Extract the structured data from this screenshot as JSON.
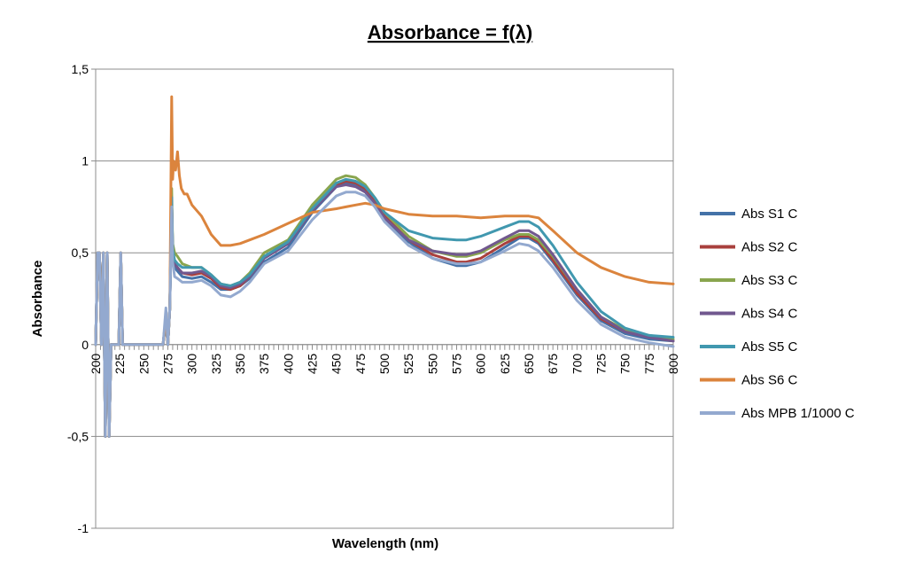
{
  "chart_data": {
    "type": "line",
    "title": "Absorbance = f(λ)",
    "xlabel": "Wavelength (nm)",
    "ylabel": "Absorbance",
    "xlim": [
      200,
      800
    ],
    "ylim": [
      -1,
      1.5
    ],
    "x_ticks": [
      200,
      225,
      250,
      275,
      300,
      325,
      350,
      375,
      400,
      425,
      450,
      475,
      500,
      525,
      550,
      575,
      600,
      625,
      650,
      675,
      700,
      725,
      750,
      775,
      800
    ],
    "y_ticks": [
      -1,
      -0.5,
      0,
      0.5,
      1,
      1.5
    ],
    "y_tick_labels": [
      "-1",
      "-0,5",
      "0",
      "0,5",
      "1",
      "1,5"
    ],
    "grid": "horizontal",
    "legend_position": "right",
    "series": [
      {
        "name": "Abs S1 C",
        "color": "#4472A8",
        "x": [
          200,
          202,
          204,
          206,
          208,
          210,
          212,
          214,
          216,
          218,
          222,
          224,
          226,
          228,
          230,
          240,
          250,
          260,
          270,
          273,
          275,
          277,
          279,
          280,
          282,
          285,
          290,
          300,
          310,
          320,
          330,
          340,
          350,
          360,
          375,
          400,
          425,
          450,
          460,
          470,
          480,
          490,
          500,
          525,
          550,
          575,
          585,
          600,
          625,
          640,
          650,
          660,
          675,
          700,
          725,
          750,
          775,
          800
        ],
        "y": [
          0,
          0.5,
          0.5,
          0,
          0.5,
          -0.5,
          0.5,
          -0.5,
          0,
          0,
          0,
          0,
          0.5,
          0,
          0,
          0,
          0,
          0,
          0,
          0.15,
          0,
          0.2,
          0.8,
          0.52,
          0.42,
          0.4,
          0.37,
          0.36,
          0.37,
          0.34,
          0.3,
          0.3,
          0.32,
          0.36,
          0.45,
          0.53,
          0.72,
          0.86,
          0.88,
          0.87,
          0.84,
          0.77,
          0.69,
          0.56,
          0.47,
          0.43,
          0.43,
          0.45,
          0.53,
          0.58,
          0.58,
          0.55,
          0.45,
          0.27,
          0.13,
          0.06,
          0.03,
          0.02
        ]
      },
      {
        "name": "Abs S2 C",
        "color": "#A9403D",
        "x": [
          200,
          202,
          204,
          206,
          208,
          210,
          212,
          214,
          216,
          218,
          222,
          224,
          226,
          228,
          230,
          240,
          250,
          260,
          270,
          273,
          275,
          277,
          279,
          280,
          282,
          285,
          290,
          300,
          310,
          320,
          330,
          340,
          350,
          360,
          375,
          400,
          425,
          450,
          460,
          470,
          480,
          490,
          500,
          525,
          550,
          575,
          585,
          600,
          625,
          640,
          650,
          660,
          675,
          700,
          725,
          750,
          775,
          800
        ],
        "y": [
          0,
          0.5,
          0.5,
          0,
          0.5,
          -0.5,
          0.5,
          -0.5,
          0,
          0,
          0,
          0,
          0.5,
          0,
          0,
          0,
          0,
          0,
          0,
          0.15,
          0,
          0.2,
          0.8,
          0.5,
          0.44,
          0.42,
          0.39,
          0.38,
          0.39,
          0.36,
          0.31,
          0.3,
          0.32,
          0.37,
          0.47,
          0.55,
          0.73,
          0.87,
          0.89,
          0.88,
          0.85,
          0.78,
          0.7,
          0.57,
          0.49,
          0.45,
          0.45,
          0.47,
          0.55,
          0.59,
          0.59,
          0.56,
          0.46,
          0.28,
          0.14,
          0.07,
          0.04,
          0.02
        ]
      },
      {
        "name": "Abs S3 C",
        "color": "#89A54E",
        "x": [
          200,
          202,
          204,
          206,
          208,
          210,
          212,
          214,
          216,
          218,
          222,
          224,
          226,
          228,
          230,
          240,
          250,
          260,
          270,
          273,
          275,
          277,
          279,
          280,
          282,
          285,
          290,
          300,
          310,
          320,
          330,
          340,
          350,
          360,
          375,
          400,
          425,
          450,
          460,
          470,
          480,
          490,
          500,
          525,
          550,
          575,
          585,
          600,
          625,
          640,
          650,
          660,
          675,
          700,
          725,
          750,
          775,
          800
        ],
        "y": [
          0,
          0.5,
          0.5,
          0,
          0.5,
          -0.5,
          0.5,
          -0.5,
          0,
          0,
          0,
          0,
          0.5,
          0,
          0,
          0,
          0,
          0,
          0,
          0.15,
          0,
          0.2,
          0.85,
          0.55,
          0.5,
          0.48,
          0.44,
          0.42,
          0.42,
          0.38,
          0.33,
          0.32,
          0.34,
          0.39,
          0.5,
          0.57,
          0.76,
          0.9,
          0.92,
          0.91,
          0.87,
          0.8,
          0.72,
          0.59,
          0.51,
          0.48,
          0.48,
          0.5,
          0.57,
          0.6,
          0.6,
          0.57,
          0.48,
          0.3,
          0.15,
          0.08,
          0.05,
          0.03
        ]
      },
      {
        "name": "Abs S4 C",
        "color": "#71588F",
        "x": [
          200,
          202,
          204,
          206,
          208,
          210,
          212,
          214,
          216,
          218,
          222,
          224,
          226,
          228,
          230,
          240,
          250,
          260,
          270,
          273,
          275,
          277,
          279,
          280,
          282,
          285,
          290,
          300,
          310,
          320,
          330,
          340,
          350,
          360,
          375,
          400,
          425,
          450,
          460,
          470,
          480,
          490,
          500,
          525,
          550,
          575,
          585,
          600,
          625,
          640,
          650,
          660,
          675,
          700,
          725,
          750,
          775,
          800
        ],
        "y": [
          0,
          0.5,
          0.5,
          0,
          0.5,
          -0.5,
          0.5,
          -0.5,
          0,
          0,
          0,
          0,
          0.5,
          0,
          0,
          0,
          0,
          0,
          0,
          0.15,
          0,
          0.2,
          0.8,
          0.5,
          0.44,
          0.42,
          0.39,
          0.39,
          0.4,
          0.37,
          0.32,
          0.31,
          0.33,
          0.37,
          0.47,
          0.55,
          0.73,
          0.86,
          0.87,
          0.86,
          0.83,
          0.77,
          0.69,
          0.57,
          0.51,
          0.49,
          0.49,
          0.51,
          0.58,
          0.62,
          0.62,
          0.59,
          0.49,
          0.3,
          0.15,
          0.07,
          0.04,
          0.02
        ]
      },
      {
        "name": "Abs S5 C",
        "color": "#4198AF",
        "x": [
          200,
          202,
          204,
          206,
          208,
          210,
          212,
          214,
          216,
          218,
          222,
          224,
          226,
          228,
          230,
          240,
          250,
          260,
          270,
          273,
          275,
          277,
          279,
          280,
          282,
          285,
          290,
          300,
          310,
          320,
          330,
          340,
          350,
          360,
          375,
          400,
          425,
          450,
          460,
          470,
          480,
          490,
          500,
          525,
          550,
          575,
          585,
          600,
          625,
          640,
          650,
          660,
          675,
          700,
          725,
          750,
          775,
          800
        ],
        "y": [
          0,
          0.5,
          0.5,
          0,
          0.5,
          -0.5,
          0.5,
          -0.5,
          0,
          0,
          0,
          0,
          0.5,
          0,
          0,
          0,
          0,
          0,
          0,
          0.15,
          0,
          0.2,
          0.8,
          0.52,
          0.46,
          0.44,
          0.42,
          0.42,
          0.42,
          0.38,
          0.33,
          0.32,
          0.34,
          0.38,
          0.48,
          0.56,
          0.74,
          0.88,
          0.9,
          0.89,
          0.86,
          0.8,
          0.72,
          0.62,
          0.58,
          0.57,
          0.57,
          0.59,
          0.64,
          0.67,
          0.67,
          0.64,
          0.54,
          0.34,
          0.18,
          0.09,
          0.05,
          0.04
        ]
      },
      {
        "name": "Abs S6 C",
        "color": "#DB843D",
        "x": [
          200,
          202,
          204,
          206,
          208,
          210,
          212,
          214,
          216,
          218,
          222,
          224,
          226,
          228,
          230,
          240,
          250,
          260,
          270,
          273,
          275,
          277,
          279,
          280,
          281,
          283,
          285,
          287,
          289,
          292,
          295,
          300,
          310,
          320,
          330,
          340,
          350,
          360,
          375,
          400,
          425,
          450,
          460,
          470,
          480,
          490,
          500,
          525,
          550,
          575,
          600,
          625,
          650,
          660,
          675,
          700,
          725,
          750,
          775,
          800
        ],
        "y": [
          0,
          0.5,
          0.5,
          0,
          0.5,
          -0.5,
          0.5,
          -0.5,
          0,
          0,
          0,
          0,
          0.5,
          0,
          0,
          0,
          0,
          0,
          0,
          0.15,
          0,
          0.2,
          1.35,
          0.9,
          1.0,
          0.95,
          1.05,
          0.92,
          0.85,
          0.82,
          0.82,
          0.76,
          0.7,
          0.6,
          0.54,
          0.54,
          0.55,
          0.57,
          0.6,
          0.66,
          0.72,
          0.74,
          0.75,
          0.76,
          0.77,
          0.76,
          0.74,
          0.71,
          0.7,
          0.7,
          0.69,
          0.7,
          0.7,
          0.69,
          0.62,
          0.5,
          0.42,
          0.37,
          0.34,
          0.33
        ]
      },
      {
        "name": "Abs MPB 1/1000 C",
        "color": "#93A9CF",
        "x": [
          200,
          202,
          204,
          206,
          208,
          210,
          212,
          214,
          216,
          218,
          222,
          224,
          226,
          228,
          230,
          240,
          250,
          260,
          270,
          273,
          275,
          277,
          279,
          280,
          282,
          285,
          290,
          300,
          310,
          320,
          330,
          340,
          350,
          360,
          375,
          400,
          425,
          450,
          460,
          470,
          480,
          490,
          500,
          525,
          550,
          575,
          585,
          600,
          625,
          640,
          650,
          660,
          675,
          700,
          725,
          750,
          775,
          800
        ],
        "y": [
          0,
          0.5,
          0.5,
          0,
          0.5,
          -0.5,
          0.5,
          -0.5,
          0,
          0,
          0,
          0,
          0.5,
          0,
          0,
          0,
          0,
          0,
          0,
          0.2,
          0,
          0.2,
          0.75,
          0.45,
          0.37,
          0.36,
          0.34,
          0.34,
          0.35,
          0.32,
          0.27,
          0.26,
          0.29,
          0.34,
          0.44,
          0.51,
          0.68,
          0.81,
          0.83,
          0.83,
          0.81,
          0.75,
          0.67,
          0.54,
          0.47,
          0.44,
          0.44,
          0.45,
          0.51,
          0.55,
          0.54,
          0.51,
          0.42,
          0.24,
          0.11,
          0.04,
          0.01,
          -0.01
        ]
      }
    ]
  }
}
